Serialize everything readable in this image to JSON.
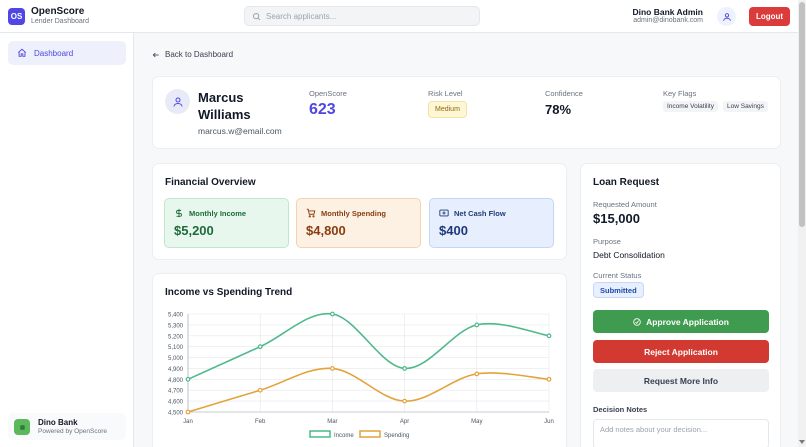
{
  "app": {
    "logo_text": "OS",
    "name": "OpenScore",
    "subtitle": "Lender Dashboard"
  },
  "search": {
    "placeholder": "Search applicants..."
  },
  "user": {
    "name": "Dino Bank Admin",
    "email": "admin@dinobank.com",
    "logout_label": "Logout"
  },
  "sidebar": {
    "items": [
      {
        "label": "Dashboard",
        "icon": "home-icon",
        "active": true
      }
    ],
    "bank": {
      "name": "Dino Bank",
      "subtitle": "Powered by OpenScore"
    }
  },
  "nav": {
    "back_label": "Back to Dashboard"
  },
  "applicant": {
    "name": "Marcus Williams",
    "email": "marcus.w@email.com",
    "openscore_label": "OpenScore",
    "openscore": "623",
    "risk_label": "Risk Level",
    "risk": "Medium",
    "confidence_label": "Confidence",
    "confidence": "78%",
    "flags_label": "Key Flags",
    "flags": [
      "Income Volatility",
      "Low Savings"
    ]
  },
  "financial": {
    "title": "Financial Overview",
    "income_label": "Monthly Income",
    "income": "$5,200",
    "spending_label": "Monthly Spending",
    "spending": "$4,800",
    "cashflow_label": "Net Cash Flow",
    "cashflow": "$400"
  },
  "loan": {
    "title": "Loan Request",
    "amount_label": "Requested Amount",
    "amount": "$15,000",
    "purpose_label": "Purpose",
    "purpose": "Debt Consolidation",
    "status_label": "Current Status",
    "status": "Submitted",
    "approve_label": "Approve Application",
    "reject_label": "Reject Application",
    "more_info_label": "Request More Info",
    "notes_label": "Decision Notes",
    "notes_placeholder": "Add notes about your decision..."
  },
  "colors": {
    "accent": "#4f46e5",
    "income": "#4fb98a",
    "spending": "#e3a33b",
    "approve": "#3f9b50",
    "reject": "#d23a31",
    "logout": "#dc3b3b"
  },
  "chart_data": {
    "type": "line",
    "title": "Income vs Spending Trend",
    "categories": [
      "Jan",
      "Feb",
      "Mar",
      "Apr",
      "May",
      "Jun"
    ],
    "series": [
      {
        "name": "Income",
        "color": "#4fb98a",
        "values": [
          4800,
          5100,
          5400,
          4900,
          5300,
          5200
        ]
      },
      {
        "name": "Spending",
        "color": "#e3a33b",
        "values": [
          4500,
          4700,
          4900,
          4600,
          4850,
          4800
        ]
      }
    ],
    "ylim": [
      4500,
      5400
    ],
    "yticks": [
      4500,
      4600,
      4700,
      4800,
      4900,
      5000,
      5100,
      5200,
      5300,
      5400
    ],
    "grid": true,
    "legend": "bottom"
  }
}
